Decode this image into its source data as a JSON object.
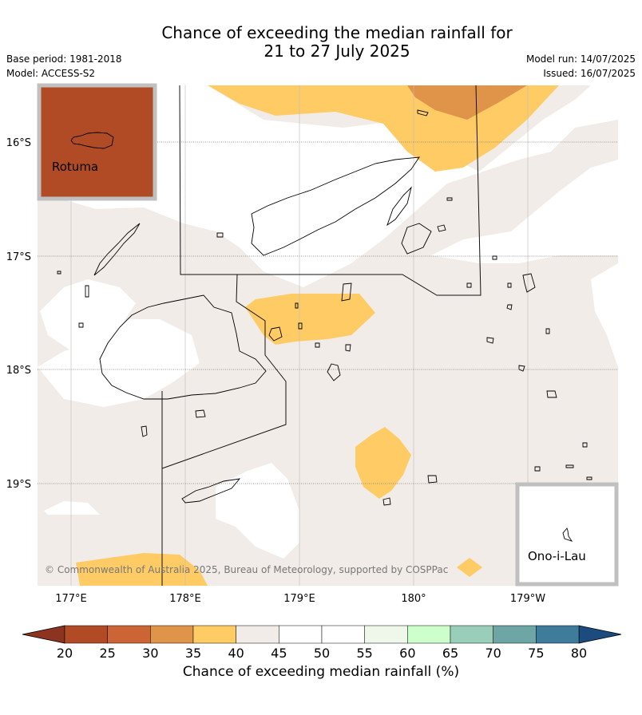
{
  "header": {
    "title_line1": "Chance of exceeding the median rainfall for",
    "title_line2": "21 to 27 July 2025",
    "base_period": "Base period: 1981-2018",
    "model": "Model: ACCESS-S2",
    "model_run": "Model run: 14/07/2025",
    "issued": "Issued: 16/07/2025"
  },
  "map": {
    "lat_labels": [
      "16°S",
      "17°S",
      "18°S",
      "19°S"
    ],
    "lon_labels": [
      "177°E",
      "178°E",
      "179°E",
      "180°",
      "179°W"
    ],
    "inset_rotuma": "Rotuma",
    "inset_ono": "Ono-i-Lau",
    "copyright": "© Commonwealth of Australia 2025, Bureau of Meteorology, supported by COSPPac"
  },
  "colorbar": {
    "ticks": [
      "20",
      "25",
      "30",
      "35",
      "40",
      "45",
      "50",
      "55",
      "60",
      "65",
      "70",
      "75",
      "80"
    ],
    "colors": [
      "#b14b26",
      "#cc6535",
      "#e0944a",
      "#fecb65",
      "#f1ece7",
      "#ffffff",
      "#ffffff",
      "#eef7ea",
      "#ccffcc",
      "#99cfba",
      "#6ea6a6",
      "#3f7b9a"
    ],
    "under_color": "#8c3420",
    "over_color": "#1c4b7e",
    "label": "Chance of exceeding median rainfall (%)"
  }
}
